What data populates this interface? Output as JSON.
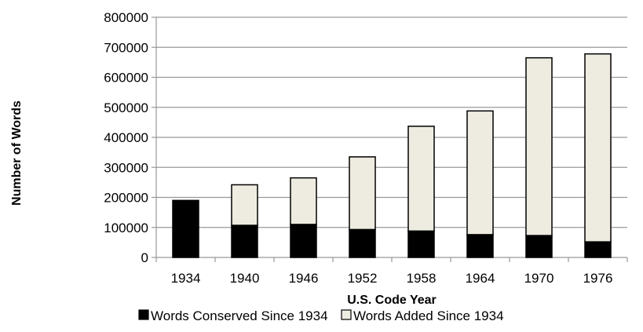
{
  "chart_data": {
    "type": "bar",
    "stacked": true,
    "categories": [
      "1934",
      "1940",
      "1946",
      "1952",
      "1958",
      "1964",
      "1970",
      "1976"
    ],
    "series": [
      {
        "name": "Words Conserved Since 1934",
        "color": "#000000",
        "values": [
          190000,
          107000,
          110000,
          93000,
          88000,
          76000,
          73000,
          52000
        ]
      },
      {
        "name": "Words Added Since 1934",
        "color": "#eeece1",
        "values": [
          0,
          135000,
          155000,
          242000,
          349000,
          412000,
          592000,
          626000
        ]
      }
    ],
    "xlabel": "U.S. Code Year",
    "ylabel": "Number of Words",
    "ylim": [
      0,
      800000
    ],
    "yticks": [
      0,
      100000,
      200000,
      300000,
      400000,
      500000,
      600000,
      700000,
      800000
    ],
    "grid": "horizontal",
    "legend_position": "bottom",
    "border_color": "#000000",
    "grid_color": "#999999"
  }
}
